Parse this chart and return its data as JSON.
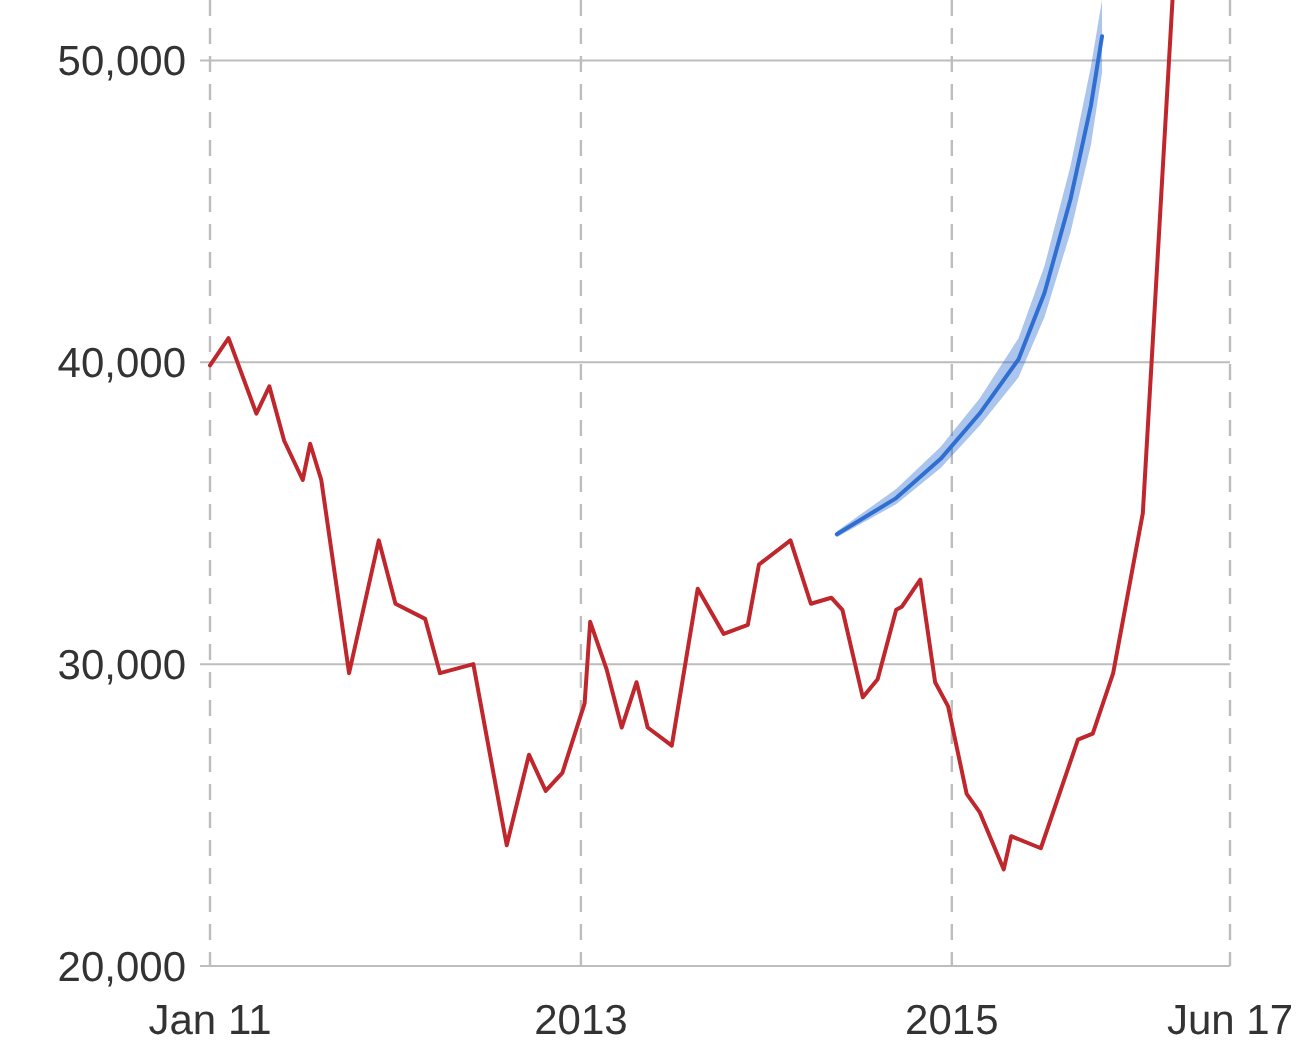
{
  "chart_data": {
    "type": "line",
    "xlim": [
      2011,
      2016.5
    ],
    "ylim": [
      20000,
      52000
    ],
    "xticks": [
      {
        "value": 2011,
        "label": "Jan 11"
      },
      {
        "value": 2013,
        "label": "2013"
      },
      {
        "value": 2015,
        "label": "2015"
      },
      {
        "value": 2016.5,
        "label": "Jun 17"
      }
    ],
    "yticks": [
      {
        "value": 20000,
        "label": "20,000"
      },
      {
        "value": 30000,
        "label": "30,000"
      },
      {
        "value": 40000,
        "label": "40,000"
      },
      {
        "value": 50000,
        "label": "50,000"
      }
    ],
    "grid": true,
    "series": [
      {
        "color": "#c0272d",
        "x": [
          2011.0,
          2011.1,
          2011.25,
          2011.32,
          2011.4,
          2011.5,
          2011.54,
          2011.6,
          2011.75,
          2011.91,
          2012.0,
          2012.16,
          2012.24,
          2012.42,
          2012.6,
          2012.72,
          2012.81,
          2012.9,
          2013.02,
          2013.05,
          2013.14,
          2013.22,
          2013.3,
          2013.36,
          2013.49,
          2013.63,
          2013.77,
          2013.9,
          2013.96,
          2014.13,
          2014.24,
          2014.35,
          2014.41,
          2014.52,
          2014.6,
          2014.7,
          2014.73,
          2014.83,
          2014.91,
          2014.98,
          2015.08,
          2015.15,
          2015.28,
          2015.32,
          2015.48,
          2015.68,
          2015.76,
          2015.87,
          2016.03,
          2016.08,
          2016.19
        ],
        "values": [
          39900,
          40800,
          38300,
          39200,
          37400,
          36100,
          37300,
          36100,
          29700,
          34100,
          32000,
          31500,
          29700,
          30000,
          24000,
          27000,
          25800,
          26400,
          28700,
          31400,
          29800,
          27900,
          29400,
          27900,
          27300,
          32500,
          31000,
          31300,
          33300,
          34100,
          32000,
          32200,
          31800,
          28900,
          29500,
          31800,
          31900,
          32800,
          29400,
          28600,
          25700,
          25100,
          23200,
          24300,
          23900,
          27500,
          27700,
          29700,
          35000,
          40300,
          52000
        ]
      },
      {
        "color": "#2f6fd1",
        "x": [
          2014.38,
          2014.7,
          2014.94,
          2015.15,
          2015.36,
          2015.5,
          2015.64,
          2015.75,
          2015.81
        ],
        "values": [
          34300,
          35500,
          36800,
          38300,
          40100,
          42300,
          45400,
          48500,
          50800
        ],
        "lower": [
          34200,
          35300,
          36500,
          37900,
          39500,
          41500,
          44300,
          47200,
          49600
        ],
        "upper": [
          34400,
          35800,
          37200,
          38800,
          40800,
          43200,
          46500,
          49800,
          52000
        ]
      }
    ]
  }
}
